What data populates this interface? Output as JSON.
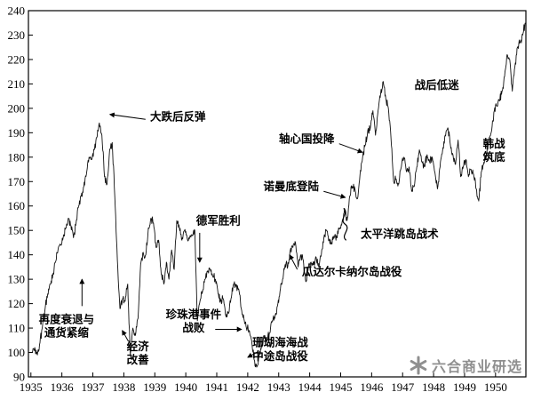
{
  "chart_data": {
    "type": "line",
    "title": "",
    "xlabel": "",
    "ylabel": "",
    "grid": false,
    "legend": "none",
    "x_range": [
      1934.92,
      1950.98
    ],
    "y_range": [
      90,
      240
    ],
    "x_ticks": [
      1935,
      1936,
      1937,
      1938,
      1939,
      1940,
      1941,
      1942,
      1943,
      1944,
      1945,
      1946,
      1947,
      1948,
      1949,
      1950
    ],
    "y_ticks": [
      90,
      100,
      110,
      120,
      130,
      140,
      150,
      160,
      170,
      180,
      190,
      200,
      210,
      220,
      230,
      240
    ],
    "series": [
      {
        "name": "",
        "frequency": "monthly",
        "start_year": 1935,
        "values": [
          100,
          102,
          99,
          104,
          111,
          118,
          124,
          128,
          132,
          137,
          142,
          144,
          147,
          151,
          155,
          152,
          147,
          153,
          160,
          164,
          168,
          173,
          180,
          179,
          183,
          188,
          194,
          189,
          172,
          169,
          183,
          186,
          164,
          138,
          118,
          122,
          121,
          128,
          99,
          110,
          107,
          114,
          136,
          141,
          140,
          151,
          155,
          153,
          143,
          146,
          132,
          128,
          137,
          130,
          142,
          134,
          154,
          151,
          146,
          150,
          147,
          147,
          148,
          150,
          113,
          121,
          125,
          130,
          133,
          134,
          131,
          130,
          124,
          121,
          122,
          115,
          116,
          122,
          128,
          127,
          126,
          118,
          114,
          110,
          109,
          105,
          97,
          94,
          99,
          103,
          107,
          105,
          108,
          113,
          114,
          119,
          125,
          130,
          136,
          135,
          142,
          143,
          145,
          135,
          140,
          138,
          129,
          135,
          137,
          136,
          139,
          135,
          140,
          147,
          150,
          146,
          145,
          147,
          147,
          151,
          153,
          159,
          154,
          164,
          168,
          167,
          163,
          173,
          180,
          185,
          191,
          192,
          199,
          189,
          199,
          206,
          211,
          204,
          200,
          188,
          170,
          171,
          169,
          176,
          180,
          174,
          176,
          166,
          168,
          176,
          183,
          178,
          176,
          181,
          178,
          180,
          174,
          167,
          176,
          183,
          189,
          192,
          185,
          181,
          177,
          187,
          172,
          176,
          179,
          172,
          175,
          173,
          167,
          162,
          174,
          178,
          181,
          188,
          191,
          199,
          201,
          203,
          207,
          213,
          222,
          220,
          207,
          217,
          225,
          227,
          230,
          235
        ]
      }
    ],
    "annotations": [
      {
        "id": "rebound",
        "lines": [
          "大跌后反弹"
        ],
        "x": 1938.85,
        "y": 195,
        "anchor": "start",
        "arrow": {
          "x1": 1938.7,
          "y1": 195.5,
          "x2": 1937.55,
          "y2": 197.5
        }
      },
      {
        "id": "axis-surrender",
        "lines": [
          "轴心国投降"
        ],
        "x": 1944.8,
        "y": 186,
        "anchor": "end",
        "arrow": {
          "x1": 1944.95,
          "y1": 185.5,
          "x2": 1945.7,
          "y2": 182
        }
      },
      {
        "id": "normandy-landing",
        "lines": [
          "诺曼底登陆"
        ],
        "x": 1944.3,
        "y": 166.5,
        "anchor": "end",
        "arrow": {
          "x1": 1944.45,
          "y1": 166,
          "x2": 1945.15,
          "y2": 163.5
        }
      },
      {
        "id": "german-victory",
        "lines": [
          "德军胜利"
        ],
        "x": 1941.05,
        "y": 152.5,
        "anchor": "middle",
        "arrow": {
          "x1": 1940.45,
          "y1": 149,
          "x2": 1940.45,
          "y2": 137
        }
      },
      {
        "id": "postwar-slump",
        "lines": [
          "战后低迷"
        ],
        "x": 1948.1,
        "y": 208,
        "anchor": "middle"
      },
      {
        "id": "korean-war-bottom",
        "lines": [
          "韩战",
          "筑底"
        ],
        "x": 1949.95,
        "y": 184,
        "anchor": "middle"
      },
      {
        "id": "recession-deflation",
        "lines": [
          "再度衰退与",
          "通货紧缩"
        ],
        "x": 1936.15,
        "y": 112,
        "anchor": "middle",
        "arrow": {
          "x1": 1936.65,
          "y1": 119,
          "x2": 1936.65,
          "y2": 130
        }
      },
      {
        "id": "economy-improves",
        "lines": [
          "经济",
          "改善"
        ],
        "x": 1938.45,
        "y": 101,
        "anchor": "middle",
        "arrow": {
          "x1": 1938.15,
          "y1": 104.5,
          "x2": 1937.95,
          "y2": 109
        }
      },
      {
        "id": "pearl-harbor-defeat",
        "lines": [
          "珍珠港事件",
          "战败"
        ],
        "x": 1940.25,
        "y": 114,
        "anchor": "middle",
        "arrow": {
          "x1": 1940.95,
          "y1": 109.5,
          "x2": 1941.8,
          "y2": 109.5
        }
      },
      {
        "id": "coral-sea-midway",
        "lines": [
          "珊瑚海海战",
          "中途岛战役"
        ],
        "x": 1943.05,
        "y": 102.5,
        "anchor": "middle",
        "arrow": {
          "x1": 1942.35,
          "y1": 100.5,
          "x2": 1942.0,
          "y2": 98
        }
      },
      {
        "id": "guadalcanal",
        "lines": [
          "瓜达尔卡纳尔岛战役"
        ],
        "x": 1943.75,
        "y": 131.5,
        "anchor": "start",
        "arrow": {
          "x1": 1943.6,
          "y1": 134,
          "x2": 1943.35,
          "y2": 140
        }
      },
      {
        "id": "island-hopping",
        "lines": [
          "太平洋跳岛战术"
        ],
        "x": 1945.65,
        "y": 147,
        "anchor": "start",
        "squiggle": {
          "x": 1945.15,
          "y1": 159,
          "y2": 146
        }
      }
    ],
    "colors": {
      "line": "#111111",
      "axis": "#000000",
      "annotation_text": "#000000",
      "watermark": "#8f8f8f"
    },
    "watermark": {
      "icon": "asterisk-logo-icon",
      "text": "六合商业研选"
    }
  }
}
